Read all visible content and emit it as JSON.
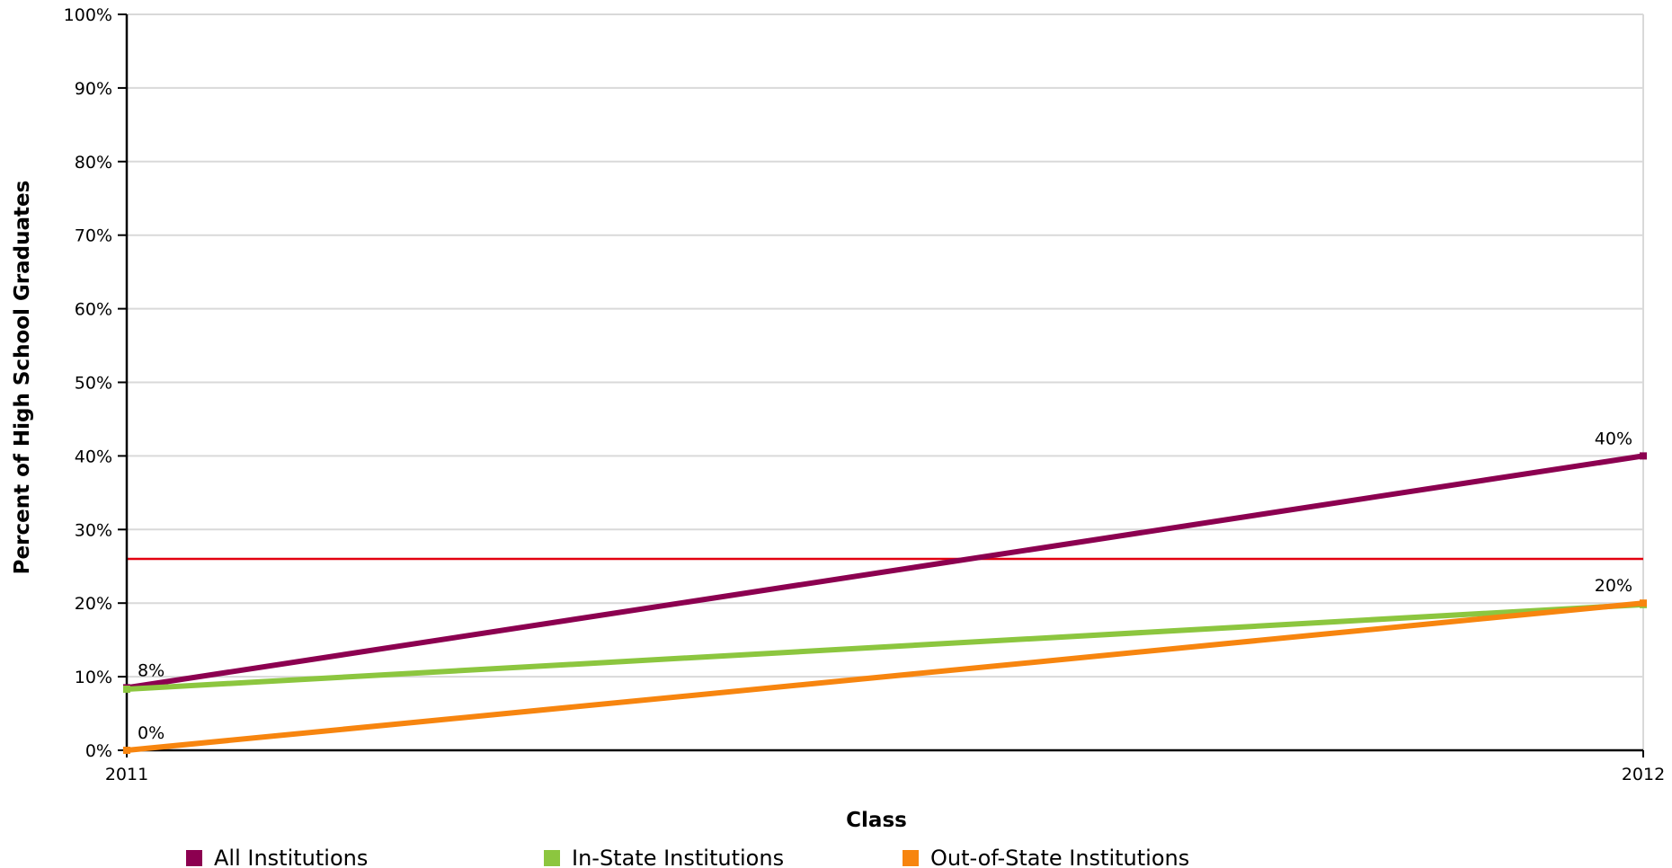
{
  "chart_data": {
    "type": "line",
    "x": [
      "2011",
      "2012"
    ],
    "xlabel": "Class",
    "ylabel": "Percent of High School Graduates",
    "ylim": [
      0,
      100
    ],
    "y_ticks": [
      "0%",
      "10%",
      "20%",
      "30%",
      "40%",
      "50%",
      "60%",
      "70%",
      "80%",
      "90%",
      "100%"
    ],
    "grid": true,
    "legend_position": "bottom",
    "reference_line": {
      "value": 26,
      "color": "#e3000f"
    },
    "series": [
      {
        "name": "All Institutions",
        "color": "#8c0050",
        "values": [
          8.5,
          40
        ],
        "labels": [
          "8%",
          "40%"
        ]
      },
      {
        "name": "In-State Institutions",
        "color": "#8cc63f",
        "values": [
          8.3,
          19.8
        ],
        "labels": [
          "",
          ""
        ]
      },
      {
        "name": "Out-of-State Institutions",
        "color": "#f7850f",
        "values": [
          0,
          20
        ],
        "labels": [
          "0%",
          "20%"
        ]
      }
    ]
  }
}
